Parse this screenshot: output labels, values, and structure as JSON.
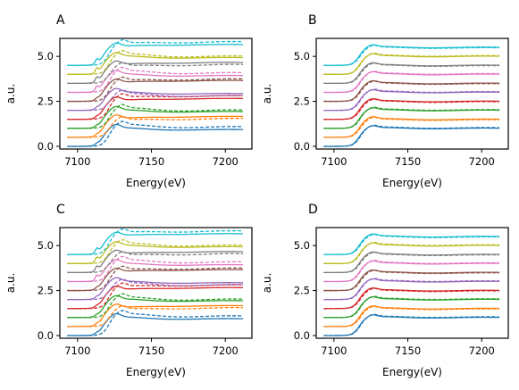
{
  "chart_data": [
    {
      "type": "line",
      "panel": "A",
      "xlabel": "Energy(eV)",
      "ylabel": "a.u.",
      "xlim": [
        7088,
        7218
      ],
      "ylim": [
        -0.15,
        6.0
      ],
      "xticks": [
        7100,
        7150,
        7200
      ],
      "yticks": [
        0.0,
        2.5,
        5.0
      ],
      "ytick_labels": [
        "0.0",
        "2.5",
        "5.0"
      ],
      "grid": false,
      "n_series": 10,
      "series_offset": 0.5,
      "edge_energy": 7117,
      "dashed_shift_ev": 4,
      "dashed_deviation": "large"
    },
    {
      "type": "line",
      "panel": "B",
      "xlabel": "Energy(eV)",
      "ylabel": "a.u.",
      "xlim": [
        7088,
        7218
      ],
      "ylim": [
        -0.15,
        6.0
      ],
      "xticks": [
        7100,
        7150,
        7200
      ],
      "yticks": [
        0.0,
        2.5,
        5.0
      ],
      "ytick_labels": [
        "0.0",
        "2.5",
        "5.0"
      ],
      "grid": false,
      "n_series": 10,
      "series_offset": 0.5,
      "edge_energy": 7117,
      "dashed_shift_ev": 0.6,
      "dashed_deviation": "small"
    },
    {
      "type": "line",
      "panel": "C",
      "xlabel": "Energy(eV)",
      "ylabel": "a.u.",
      "xlim": [
        7088,
        7218
      ],
      "ylim": [
        -0.15,
        6.0
      ],
      "xticks": [
        7100,
        7150,
        7200
      ],
      "yticks": [
        0.0,
        2.5,
        5.0
      ],
      "ytick_labels": [
        "0.0",
        "2.5",
        "5.0"
      ],
      "grid": false,
      "n_series": 10,
      "series_offset": 0.5,
      "edge_energy": 7117,
      "dashed_shift_ev": 4,
      "dashed_deviation": "large"
    },
    {
      "type": "line",
      "panel": "D",
      "xlabel": "Energy(eV)",
      "ylabel": "a.u.",
      "xlim": [
        7088,
        7218
      ],
      "ylim": [
        -0.15,
        6.0
      ],
      "xticks": [
        7100,
        7150,
        7200
      ],
      "yticks": [
        0.0,
        2.5,
        5.0
      ],
      "ytick_labels": [
        "0.0",
        "2.5",
        "5.0"
      ],
      "grid": false,
      "n_series": 10,
      "series_offset": 0.5,
      "edge_energy": 7117,
      "dashed_shift_ev": 0.6,
      "dashed_deviation": "small"
    }
  ],
  "colors": [
    "#1f77b4",
    "#ff7f0e",
    "#2ca02c",
    "#d62728",
    "#9467bd",
    "#8c564b",
    "#e377c2",
    "#7f7f7f",
    "#bcbd22",
    "#17becf"
  ]
}
